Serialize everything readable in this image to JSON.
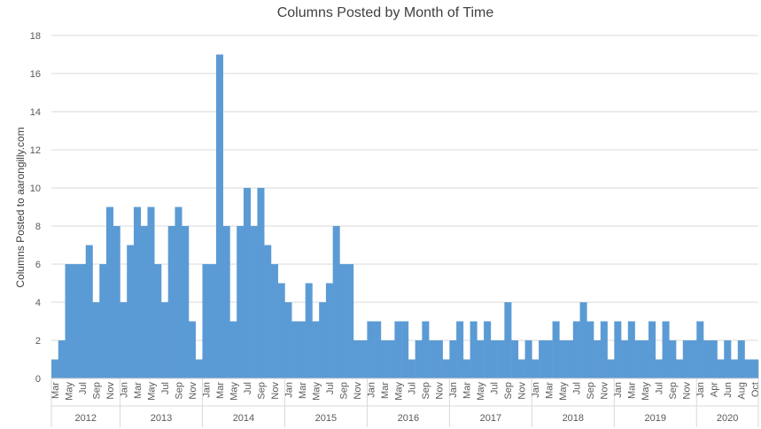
{
  "chart_data": {
    "type": "bar",
    "title": "Columns Posted by Month of Time",
    "xlabel": "",
    "ylabel": "Columns Posted to aarongilly.com",
    "ylim": [
      0,
      18
    ],
    "yticks": [
      0,
      2,
      4,
      6,
      8,
      10,
      12,
      14,
      16,
      18
    ],
    "grid": true,
    "bar_color": "#5B9BD5",
    "groups": [
      {
        "year": "2012",
        "months": [
          "Mar",
          "Apr",
          "May",
          "Jun",
          "Jul",
          "Aug",
          "Sep",
          "Oct",
          "Nov",
          "Dec"
        ],
        "values": [
          1,
          2,
          6,
          6,
          6,
          7,
          4,
          6,
          9,
          8
        ]
      },
      {
        "year": "2013",
        "months": [
          "Jan",
          "Feb",
          "Mar",
          "Apr",
          "May",
          "Jun",
          "Jul",
          "Aug",
          "Sep",
          "Oct",
          "Nov",
          "Dec"
        ],
        "values": [
          4,
          7,
          9,
          8,
          9,
          6,
          4,
          8,
          9,
          8,
          3,
          1
        ]
      },
      {
        "year": "2014",
        "months": [
          "Jan",
          "Feb",
          "Mar",
          "Apr",
          "May",
          "Jun",
          "Jul",
          "Aug",
          "Sep",
          "Oct",
          "Nov",
          "Dec"
        ],
        "values": [
          6,
          6,
          17,
          8,
          3,
          8,
          10,
          8,
          10,
          7,
          6,
          5
        ]
      },
      {
        "year": "2015",
        "months": [
          "Jan",
          "Feb",
          "Mar",
          "Apr",
          "May",
          "Jun",
          "Jul",
          "Aug",
          "Sep",
          "Oct",
          "Nov",
          "Dec"
        ],
        "values": [
          4,
          3,
          3,
          5,
          3,
          4,
          5,
          8,
          6,
          6,
          2,
          2
        ]
      },
      {
        "year": "2016",
        "months": [
          "Jan",
          "Feb",
          "Mar",
          "Apr",
          "May",
          "Jun",
          "Jul",
          "Aug",
          "Sep",
          "Oct",
          "Nov",
          "Dec"
        ],
        "values": [
          3,
          3,
          2,
          2,
          3,
          3,
          1,
          2,
          3,
          2,
          2,
          1
        ]
      },
      {
        "year": "2017",
        "months": [
          "Jan",
          "Feb",
          "Mar",
          "Apr",
          "May",
          "Jun",
          "Jul",
          "Aug",
          "Sep",
          "Oct",
          "Nov",
          "Dec"
        ],
        "values": [
          2,
          3,
          1,
          3,
          2,
          3,
          2,
          2,
          4,
          2,
          1,
          2
        ]
      },
      {
        "year": "2018",
        "months": [
          "Jan",
          "Feb",
          "Mar",
          "Apr",
          "May",
          "Jun",
          "Jul",
          "Aug",
          "Sep",
          "Oct",
          "Nov",
          "Dec"
        ],
        "values": [
          1,
          2,
          2,
          3,
          2,
          2,
          3,
          4,
          3,
          2,
          3,
          1
        ]
      },
      {
        "year": "2019",
        "months": [
          "Jan",
          "Feb",
          "Mar",
          "Apr",
          "May",
          "Jun",
          "Jul",
          "Aug",
          "Sep",
          "Oct",
          "Nov",
          "Dec"
        ],
        "values": [
          3,
          2,
          3,
          2,
          2,
          3,
          1,
          3,
          2,
          1,
          2,
          2
        ]
      },
      {
        "year": "2020",
        "months": [
          "Jan",
          "Mar",
          "Apr",
          "May",
          "Jun",
          "Jul",
          "Aug",
          "Sep",
          "Oct"
        ],
        "values": [
          3,
          2,
          2,
          1,
          2,
          1,
          2,
          1,
          1
        ]
      }
    ]
  }
}
